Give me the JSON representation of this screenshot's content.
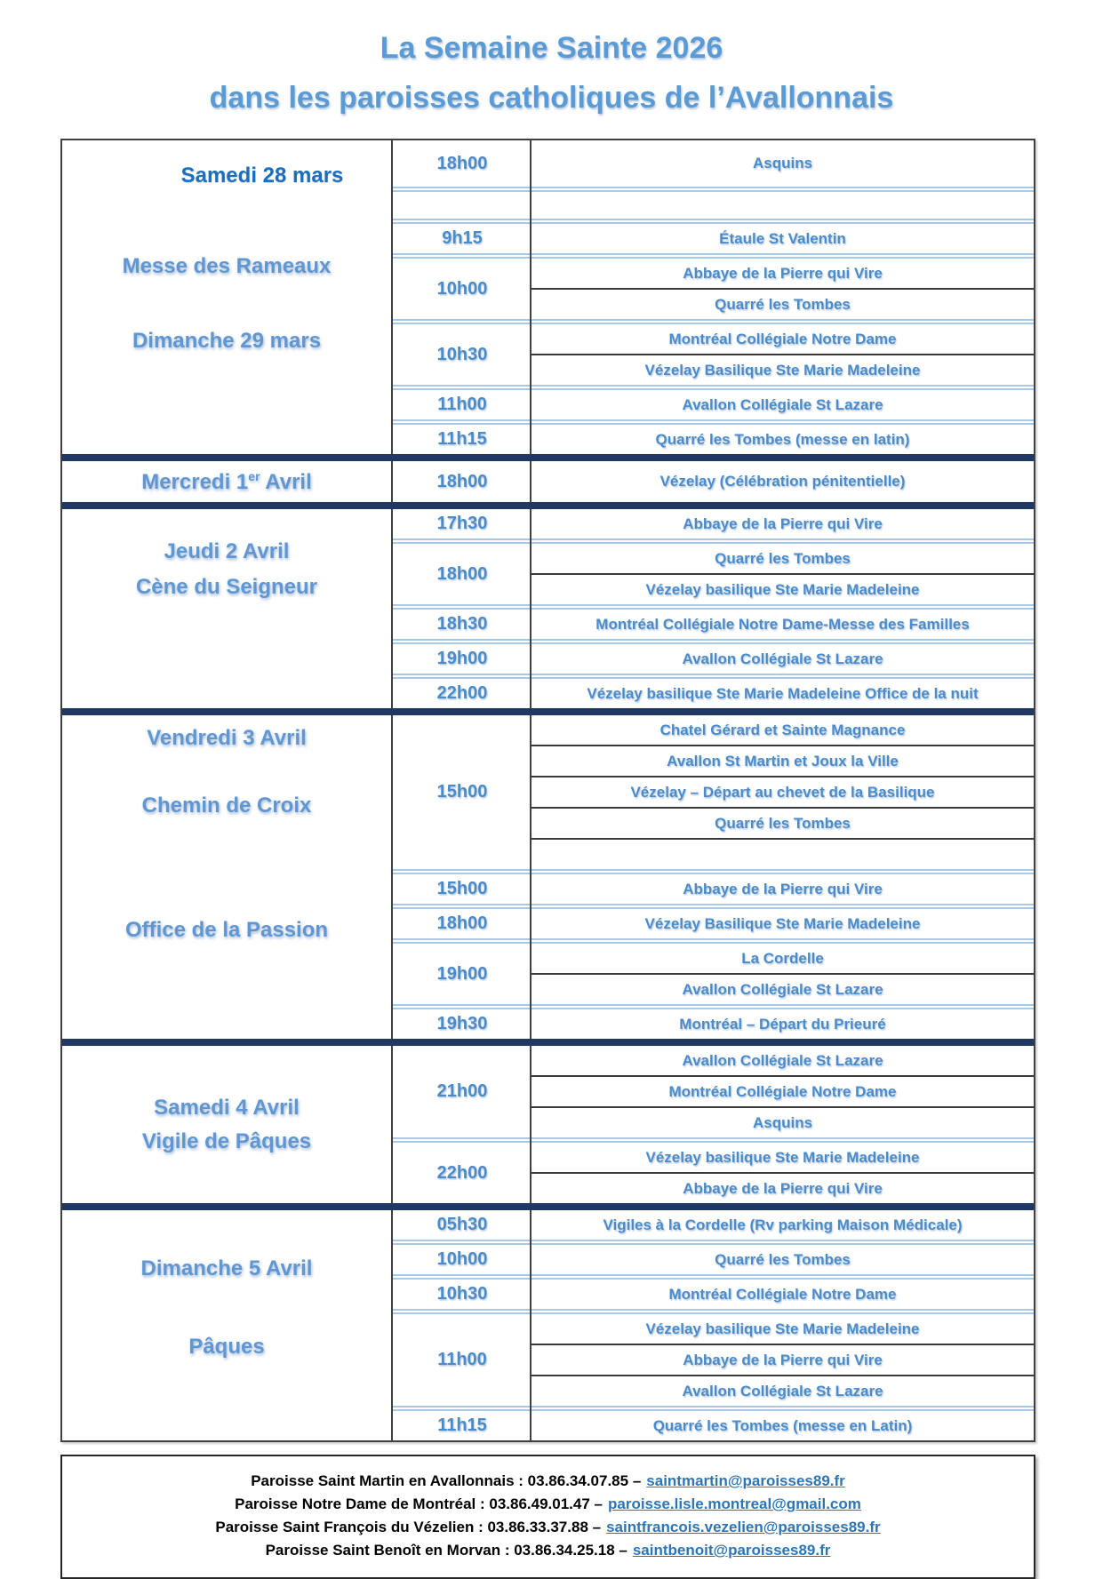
{
  "title": {
    "line1": "La Semaine Sainte 2026",
    "line2": "dans les paroisses catholiques de l’Avallonnais"
  },
  "colors": {
    "title_blue": "#5b9bd5",
    "label_blue": "#6096d1",
    "label_dark_blue": "#1b6fbe",
    "cell_blue": "#4b8bc9",
    "navy_divider": "#1f3864",
    "light_blue_line": "#a9c7e7",
    "dark_row_line": "#3a3a3a",
    "link_blue": "#2e75b6"
  },
  "sections": [
    {
      "labels": [
        {
          "text": "Samedi 28 mars",
          "variant": "dark"
        },
        {
          "text": "Messe des Rameaux",
          "variant": "light"
        },
        {
          "text": "Dimanche 29 mars",
          "variant": "light"
        }
      ],
      "groups": [
        {
          "time": "18h00",
          "locations": [
            "Asquins"
          ]
        },
        {
          "time": "",
          "locations": [
            ""
          ]
        },
        {
          "time": "9h15",
          "locations": [
            "Étaule St Valentin"
          ]
        },
        {
          "time": "10h00",
          "locations": [
            "Abbaye de la Pierre qui Vire",
            "Quarré les Tombes"
          ]
        },
        {
          "time": "10h30",
          "locations": [
            "Montréal Collégiale Notre Dame",
            "Vézelay Basilique Ste Marie Madeleine"
          ]
        },
        {
          "time": "11h00",
          "locations": [
            "Avallon Collégiale St Lazare"
          ]
        },
        {
          "time": "11h15",
          "locations": [
            "Quarré les Tombes (messe en latin)"
          ]
        }
      ]
    },
    {
      "labels": [
        {
          "text": "Mercredi 1",
          "sup": "er",
          "tail": " Avril",
          "variant": "light"
        }
      ],
      "groups": [
        {
          "time": "18h00",
          "locations": [
            "Vézelay (Célébration pénitentielle)"
          ]
        }
      ]
    },
    {
      "labels": [
        {
          "text": "Jeudi 2 Avril",
          "variant": "light"
        },
        {
          "text": "Cène du Seigneur",
          "variant": "light"
        }
      ],
      "groups": [
        {
          "time": "17h30",
          "locations": [
            "Abbaye de la Pierre qui Vire"
          ]
        },
        {
          "time": "18h00",
          "locations": [
            "Quarré les Tombes",
            "Vézelay basilique Ste Marie Madeleine"
          ]
        },
        {
          "time": "18h30",
          "locations": [
            "Montréal Collégiale Notre Dame-Messe des Familles"
          ]
        },
        {
          "time": "19h00",
          "locations": [
            "Avallon Collégiale St Lazare"
          ]
        },
        {
          "time": "22h00",
          "locations": [
            "Vézelay basilique Ste Marie Madeleine Office de la nuit"
          ]
        }
      ]
    },
    {
      "labels": [
        {
          "text": "Vendredi 3 Avril",
          "variant": "light"
        },
        {
          "text": "Chemin de Croix",
          "variant": "light"
        },
        {
          "text": "Office de la Passion",
          "variant": "light"
        }
      ],
      "groups": [
        {
          "time": "15h00",
          "locations": [
            "Chatel Gérard et Sainte Magnance",
            "Avallon St Martin et Joux la Ville",
            "Vézelay – Départ au chevet de la Basilique",
            "Quarré les Tombes",
            ""
          ]
        },
        {
          "time": "15h00",
          "locations": [
            "Abbaye de la Pierre qui Vire"
          ]
        },
        {
          "time": "18h00",
          "locations": [
            "Vézelay Basilique Ste Marie Madeleine"
          ]
        },
        {
          "time": "19h00",
          "locations": [
            "La Cordelle",
            "Avallon Collégiale St Lazare"
          ]
        },
        {
          "time": "19h30",
          "locations": [
            "Montréal – Départ du Prieuré"
          ]
        }
      ]
    },
    {
      "labels": [
        {
          "text": "Samedi 4 Avril",
          "variant": "light"
        },
        {
          "text": "Vigile de Pâques",
          "variant": "light"
        }
      ],
      "groups": [
        {
          "time": "21h00",
          "locations": [
            "Avallon Collégiale St Lazare",
            "Montréal Collégiale Notre Dame",
            "Asquins"
          ]
        },
        {
          "time": "22h00",
          "locations": [
            "Vézelay basilique Ste Marie Madeleine",
            "Abbaye de la Pierre qui Vire"
          ]
        }
      ]
    },
    {
      "labels": [
        {
          "text": "Dimanche 5 Avril",
          "variant": "light"
        },
        {
          "text": "Pâques",
          "variant": "light"
        }
      ],
      "groups": [
        {
          "time": "05h30",
          "locations": [
            "Vigiles à la Cordelle (Rv parking Maison Médicale)"
          ]
        },
        {
          "time": "10h00",
          "locations": [
            "Quarré les Tombes"
          ]
        },
        {
          "time": "10h30",
          "locations": [
            "Montréal Collégiale Notre Dame"
          ]
        },
        {
          "time": "11h00",
          "locations": [
            "Vézelay basilique Ste Marie Madeleine",
            "Abbaye de la Pierre qui Vire",
            "Avallon Collégiale St Lazare"
          ]
        },
        {
          "time": "11h15",
          "locations": [
            "Quarré les Tombes (messe en Latin)"
          ]
        }
      ]
    }
  ],
  "footer": {
    "lines": [
      {
        "text": "Paroisse Saint Martin en Avallonnais : 03.86.34.07.85 –",
        "link": "saintmartin@paroisses89.fr"
      },
      {
        "text": "Paroisse Notre Dame de Montréal : 03.86.49.01.47 –",
        "link": "paroisse.lisle.montreal@gmail.com"
      },
      {
        "text": "Paroisse Saint François du Vézelien : 03.86.33.37.88 –",
        "link": "saintfrancois.vezelien@paroisses89.fr"
      },
      {
        "text": "Paroisse Saint Benoît en Morvan : 03.86.34.25.18 –",
        "link": "saintbenoit@paroisses89.fr"
      }
    ]
  }
}
